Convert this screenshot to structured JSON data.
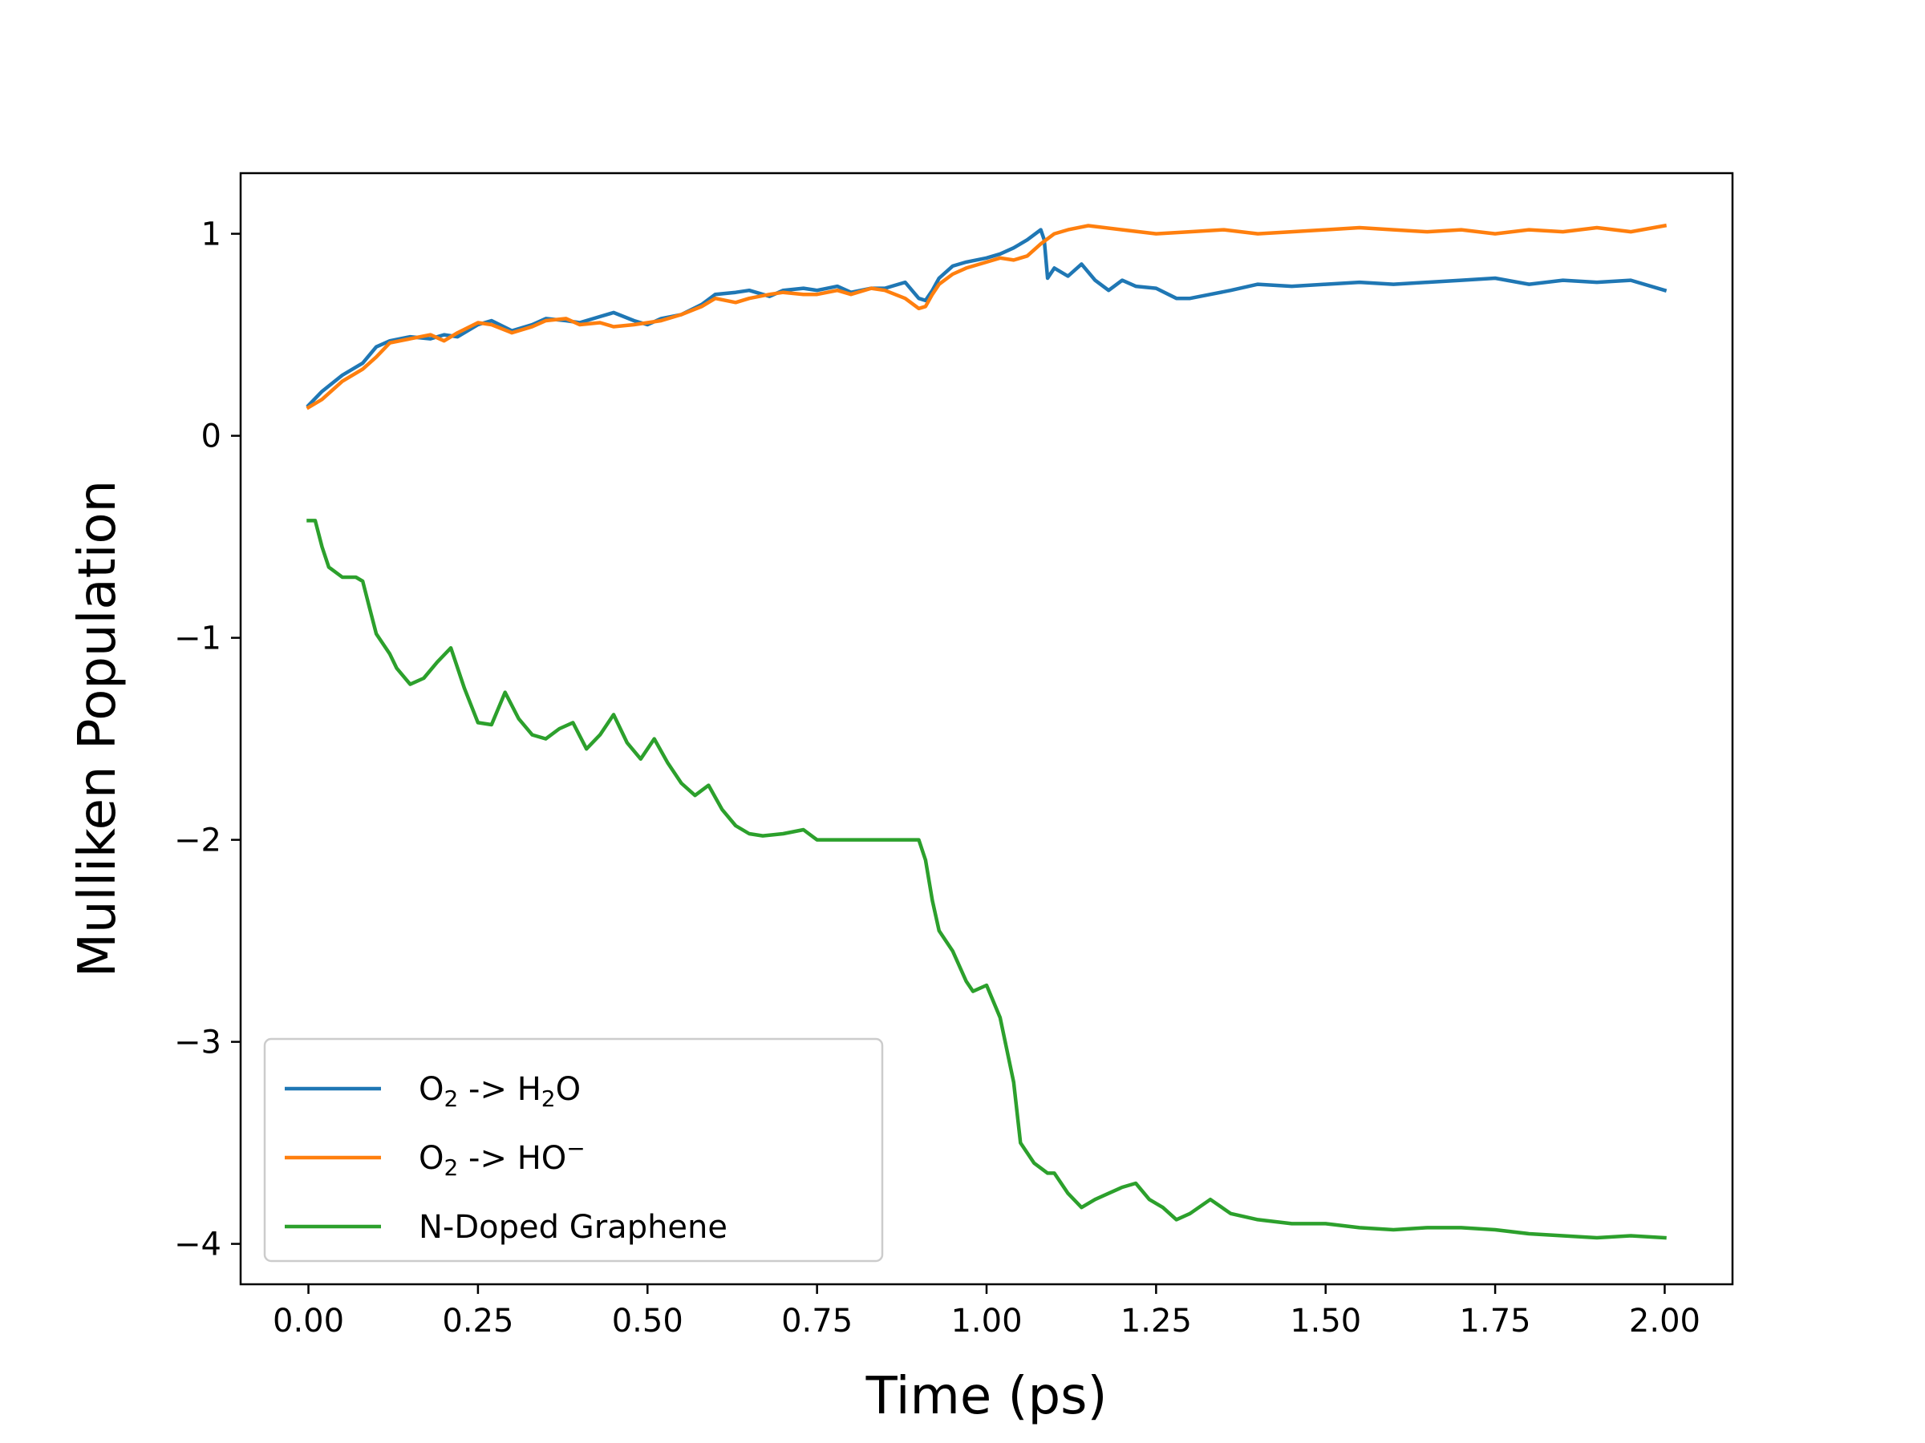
{
  "chart_data": {
    "type": "line",
    "xlabel": "Time (ps)",
    "ylabel": "Mulliken Population",
    "xlim": [
      -0.1,
      2.1
    ],
    "ylim": [
      -4.2,
      1.3
    ],
    "xticks": [
      0.0,
      0.25,
      0.5,
      0.75,
      1.0,
      1.25,
      1.5,
      1.75,
      2.0
    ],
    "xtick_labels": [
      "0.00",
      "0.25",
      "0.50",
      "0.75",
      "1.00",
      "1.25",
      "1.50",
      "1.75",
      "2.00"
    ],
    "yticks": [
      1,
      0,
      -1,
      -2,
      -3,
      -4
    ],
    "ytick_labels": [
      "1",
      "0",
      "−1",
      "−2",
      "−3",
      "−4"
    ],
    "grid": false,
    "legend_position": "lower-left",
    "series": [
      {
        "name": "O2 -> H2O",
        "legend": {
          "a": "O",
          "a_sub": "2",
          "mid": " -> H",
          "mid_sub": "2",
          "tail": "O",
          "tail_sup": ""
        },
        "color": "#1f77b4",
        "x": [
          0.0,
          0.02,
          0.05,
          0.08,
          0.1,
          0.12,
          0.15,
          0.18,
          0.2,
          0.22,
          0.25,
          0.27,
          0.3,
          0.33,
          0.35,
          0.38,
          0.4,
          0.43,
          0.45,
          0.48,
          0.5,
          0.52,
          0.55,
          0.58,
          0.6,
          0.63,
          0.65,
          0.68,
          0.7,
          0.73,
          0.75,
          0.78,
          0.8,
          0.83,
          0.85,
          0.88,
          0.9,
          0.91,
          0.92,
          0.93,
          0.95,
          0.97,
          1.0,
          1.02,
          1.04,
          1.06,
          1.08,
          1.085,
          1.09,
          1.1,
          1.12,
          1.14,
          1.16,
          1.18,
          1.2,
          1.22,
          1.25,
          1.28,
          1.3,
          1.33,
          1.36,
          1.4,
          1.45,
          1.5,
          1.55,
          1.6,
          1.65,
          1.7,
          1.75,
          1.8,
          1.85,
          1.9,
          1.95,
          2.0
        ],
        "y": [
          0.15,
          0.22,
          0.3,
          0.36,
          0.44,
          0.47,
          0.49,
          0.48,
          0.5,
          0.49,
          0.55,
          0.57,
          0.52,
          0.55,
          0.58,
          0.57,
          0.56,
          0.59,
          0.61,
          0.57,
          0.55,
          0.58,
          0.6,
          0.65,
          0.7,
          0.71,
          0.72,
          0.69,
          0.72,
          0.73,
          0.72,
          0.74,
          0.71,
          0.73,
          0.73,
          0.76,
          0.68,
          0.67,
          0.72,
          0.78,
          0.84,
          0.86,
          0.88,
          0.9,
          0.93,
          0.97,
          1.02,
          0.97,
          0.78,
          0.83,
          0.79,
          0.85,
          0.77,
          0.72,
          0.77,
          0.74,
          0.73,
          0.68,
          0.68,
          0.7,
          0.72,
          0.75,
          0.74,
          0.75,
          0.76,
          0.75,
          0.76,
          0.77,
          0.78,
          0.75,
          0.77,
          0.76,
          0.77,
          0.72
        ]
      },
      {
        "name": "O2 -> HO−",
        "legend": {
          "a": "O",
          "a_sub": "2",
          "mid": " -> HO",
          "mid_sub": "",
          "tail": "",
          "tail_sup": "−"
        },
        "color": "#ff7f0e",
        "x": [
          0.0,
          0.02,
          0.05,
          0.08,
          0.1,
          0.12,
          0.15,
          0.18,
          0.2,
          0.22,
          0.25,
          0.27,
          0.3,
          0.33,
          0.35,
          0.38,
          0.4,
          0.43,
          0.45,
          0.48,
          0.5,
          0.52,
          0.55,
          0.58,
          0.6,
          0.63,
          0.65,
          0.68,
          0.7,
          0.73,
          0.75,
          0.78,
          0.8,
          0.83,
          0.85,
          0.88,
          0.9,
          0.91,
          0.92,
          0.93,
          0.95,
          0.97,
          1.0,
          1.02,
          1.04,
          1.06,
          1.08,
          1.1,
          1.12,
          1.15,
          1.2,
          1.25,
          1.3,
          1.35,
          1.4,
          1.45,
          1.5,
          1.55,
          1.6,
          1.65,
          1.7,
          1.75,
          1.8,
          1.85,
          1.9,
          1.95,
          2.0
        ],
        "y": [
          0.14,
          0.18,
          0.27,
          0.33,
          0.39,
          0.46,
          0.48,
          0.5,
          0.47,
          0.51,
          0.56,
          0.55,
          0.51,
          0.54,
          0.57,
          0.58,
          0.55,
          0.56,
          0.54,
          0.55,
          0.56,
          0.57,
          0.6,
          0.64,
          0.68,
          0.66,
          0.68,
          0.7,
          0.71,
          0.7,
          0.7,
          0.72,
          0.7,
          0.73,
          0.72,
          0.68,
          0.63,
          0.64,
          0.7,
          0.75,
          0.8,
          0.83,
          0.86,
          0.88,
          0.87,
          0.89,
          0.95,
          1.0,
          1.02,
          1.04,
          1.02,
          1.0,
          1.01,
          1.02,
          1.0,
          1.01,
          1.02,
          1.03,
          1.02,
          1.01,
          1.02,
          1.0,
          1.02,
          1.01,
          1.03,
          1.01,
          1.04
        ]
      },
      {
        "name": "N-Doped Graphene",
        "legend": {
          "a": "N-Doped Graphene",
          "a_sub": "",
          "mid": "",
          "mid_sub": "",
          "tail": "",
          "tail_sup": ""
        },
        "color": "#2ca02c",
        "x": [
          0.0,
          0.01,
          0.02,
          0.03,
          0.05,
          0.07,
          0.08,
          0.09,
          0.1,
          0.12,
          0.13,
          0.15,
          0.17,
          0.19,
          0.21,
          0.23,
          0.25,
          0.27,
          0.29,
          0.31,
          0.33,
          0.35,
          0.37,
          0.39,
          0.41,
          0.43,
          0.45,
          0.47,
          0.49,
          0.51,
          0.53,
          0.55,
          0.57,
          0.59,
          0.61,
          0.63,
          0.65,
          0.67,
          0.7,
          0.73,
          0.75,
          0.78,
          0.8,
          0.85,
          0.9,
          0.91,
          0.92,
          0.93,
          0.95,
          0.97,
          0.98,
          1.0,
          1.02,
          1.04,
          1.05,
          1.07,
          1.09,
          1.1,
          1.12,
          1.14,
          1.16,
          1.18,
          1.2,
          1.22,
          1.24,
          1.26,
          1.28,
          1.3,
          1.33,
          1.36,
          1.4,
          1.45,
          1.5,
          1.55,
          1.6,
          1.65,
          1.7,
          1.75,
          1.8,
          1.85,
          1.9,
          1.95,
          2.0
        ],
        "y": [
          -0.42,
          -0.42,
          -0.55,
          -0.65,
          -0.7,
          -0.7,
          -0.72,
          -0.85,
          -0.98,
          -1.08,
          -1.15,
          -1.23,
          -1.2,
          -1.12,
          -1.05,
          -1.25,
          -1.42,
          -1.43,
          -1.27,
          -1.4,
          -1.48,
          -1.5,
          -1.45,
          -1.42,
          -1.55,
          -1.48,
          -1.38,
          -1.52,
          -1.6,
          -1.5,
          -1.62,
          -1.72,
          -1.78,
          -1.73,
          -1.85,
          -1.93,
          -1.97,
          -1.98,
          -1.97,
          -1.95,
          -2.0,
          -2.0,
          -2.0,
          -2.0,
          -2.0,
          -2.1,
          -2.3,
          -2.45,
          -2.55,
          -2.7,
          -2.75,
          -2.72,
          -2.88,
          -3.2,
          -3.5,
          -3.6,
          -3.65,
          -3.65,
          -3.75,
          -3.82,
          -3.78,
          -3.75,
          -3.72,
          -3.7,
          -3.78,
          -3.82,
          -3.88,
          -3.85,
          -3.78,
          -3.85,
          -3.88,
          -3.9,
          -3.9,
          -3.92,
          -3.93,
          -3.92,
          -3.92,
          -3.93,
          -3.95,
          -3.96,
          -3.97,
          -3.96,
          -3.97
        ]
      }
    ]
  }
}
